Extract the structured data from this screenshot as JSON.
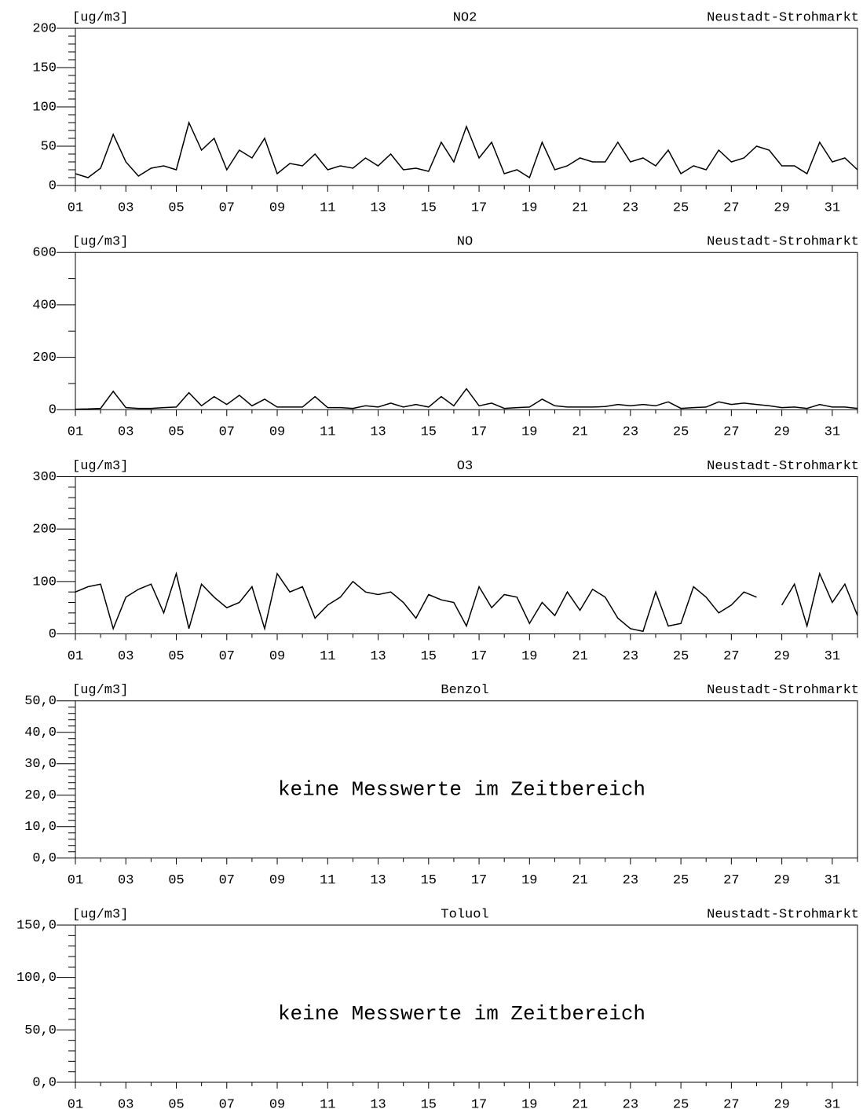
{
  "chart_data": [
    {
      "type": "line",
      "title": "NO2",
      "subtitle": "Neustadt-Strohmarkt",
      "ylabel": "[ug/m3]",
      "color": "#000000",
      "x": [
        1,
        1.5,
        2,
        2.5,
        3,
        3.5,
        4,
        4.5,
        5,
        5.5,
        6,
        6.5,
        7,
        7.5,
        8,
        8.5,
        9,
        9.5,
        10,
        10.5,
        11,
        11.5,
        12,
        12.5,
        13,
        13.5,
        14,
        14.5,
        15,
        15.5,
        16,
        16.5,
        17,
        17.5,
        18,
        18.5,
        19,
        19.5,
        20,
        20.5,
        21,
        21.5,
        22,
        22.5,
        23,
        23.5,
        24,
        24.5,
        25,
        25.5,
        26,
        26.5,
        27,
        27.5,
        28,
        28.5,
        29,
        29.5,
        30,
        30.5,
        31,
        31.5,
        32
      ],
      "values": [
        15,
        10,
        22,
        65,
        30,
        12,
        22,
        25,
        20,
        80,
        45,
        60,
        20,
        45,
        35,
        60,
        15,
        28,
        25,
        40,
        20,
        25,
        22,
        35,
        25,
        40,
        20,
        22,
        18,
        55,
        30,
        75,
        35,
        55,
        15,
        20,
        10,
        55,
        20,
        25,
        35,
        30,
        30,
        55,
        30,
        35,
        25,
        45,
        15,
        25,
        20,
        45,
        30,
        35,
        50,
        45,
        25,
        25,
        15,
        55,
        30,
        35,
        20
      ],
      "xlim": [
        1,
        32
      ],
      "xticks": [
        {
          "value": 1,
          "label": "01"
        },
        {
          "value": 3,
          "label": "03"
        },
        {
          "value": 5,
          "label": "05"
        },
        {
          "value": 7,
          "label": "07"
        },
        {
          "value": 9,
          "label": "09"
        },
        {
          "value": 11,
          "label": "11"
        },
        {
          "value": 13,
          "label": "13"
        },
        {
          "value": 15,
          "label": "15"
        },
        {
          "value": 17,
          "label": "17"
        },
        {
          "value": 19,
          "label": "19"
        },
        {
          "value": 21,
          "label": "21"
        },
        {
          "value": 23,
          "label": "23"
        },
        {
          "value": 25,
          "label": "25"
        },
        {
          "value": 27,
          "label": "27"
        },
        {
          "value": 29,
          "label": "29"
        },
        {
          "value": 31,
          "label": "31"
        }
      ],
      "xminorticks": [
        2,
        4,
        6,
        8,
        10,
        12,
        14,
        16,
        18,
        20,
        22,
        24,
        26,
        28,
        30,
        32
      ],
      "ylim": [
        0,
        200
      ],
      "yticks": [
        0,
        50,
        100,
        150,
        200
      ],
      "yminorticks": [
        10,
        20,
        30,
        40,
        60,
        70,
        80,
        90,
        110,
        120,
        130,
        140,
        160,
        170,
        180,
        190
      ]
    },
    {
      "type": "line",
      "title": "NO",
      "subtitle": "Neustadt-Strohmarkt",
      "ylabel": "[ug/m3]",
      "color": "#000000",
      "x": [
        1,
        1.5,
        2,
        2.5,
        3,
        3.5,
        4,
        4.5,
        5,
        5.5,
        6,
        6.5,
        7,
        7.5,
        8,
        8.5,
        9,
        9.5,
        10,
        10.5,
        11,
        11.5,
        12,
        12.5,
        13,
        13.5,
        14,
        14.5,
        15,
        15.5,
        16,
        16.5,
        17,
        17.5,
        18,
        18.5,
        19,
        19.5,
        20,
        20.5,
        21,
        21.5,
        22,
        22.5,
        23,
        23.5,
        24,
        24.5,
        25,
        25.5,
        26,
        26.5,
        27,
        27.5,
        28,
        28.5,
        29,
        29.5,
        30,
        30.5,
        31,
        31.5,
        32
      ],
      "values": [
        2,
        3,
        5,
        70,
        8,
        5,
        5,
        8,
        10,
        65,
        15,
        50,
        20,
        55,
        15,
        40,
        10,
        10,
        10,
        50,
        8,
        8,
        5,
        15,
        10,
        25,
        10,
        20,
        10,
        50,
        15,
        80,
        15,
        25,
        5,
        8,
        10,
        40,
        15,
        10,
        10,
        10,
        12,
        20,
        15,
        20,
        15,
        30,
        5,
        8,
        10,
        30,
        20,
        25,
        20,
        15,
        8,
        10,
        5,
        20,
        10,
        10,
        5
      ],
      "xlim": [
        1,
        32
      ],
      "xticks": [
        {
          "value": 1,
          "label": "01"
        },
        {
          "value": 3,
          "label": "03"
        },
        {
          "value": 5,
          "label": "05"
        },
        {
          "value": 7,
          "label": "07"
        },
        {
          "value": 9,
          "label": "09"
        },
        {
          "value": 11,
          "label": "11"
        },
        {
          "value": 13,
          "label": "13"
        },
        {
          "value": 15,
          "label": "15"
        },
        {
          "value": 17,
          "label": "17"
        },
        {
          "value": 19,
          "label": "19"
        },
        {
          "value": 21,
          "label": "21"
        },
        {
          "value": 23,
          "label": "23"
        },
        {
          "value": 25,
          "label": "25"
        },
        {
          "value": 27,
          "label": "27"
        },
        {
          "value": 29,
          "label": "29"
        },
        {
          "value": 31,
          "label": "31"
        }
      ],
      "xminorticks": [
        2,
        4,
        6,
        8,
        10,
        12,
        14,
        16,
        18,
        20,
        22,
        24,
        26,
        28,
        30,
        32
      ],
      "ylim": [
        0,
        600
      ],
      "yticks": [
        0,
        200,
        400,
        600
      ],
      "yminorticks": [
        100,
        300,
        500
      ]
    },
    {
      "type": "line",
      "title": "O3",
      "subtitle": "Neustadt-Strohmarkt",
      "ylabel": "[ug/m3]",
      "color": "#000000",
      "x": [
        1,
        1.5,
        2,
        2.5,
        3,
        3.5,
        4,
        4.5,
        5,
        5.5,
        6,
        6.5,
        7,
        7.5,
        8,
        8.5,
        9,
        9.5,
        10,
        10.5,
        11,
        11.5,
        12,
        12.5,
        13,
        13.5,
        14,
        14.5,
        15,
        15.5,
        16,
        16.5,
        17,
        17.5,
        18,
        18.5,
        19,
        19.5,
        20,
        20.5,
        21,
        21.5,
        22,
        22.5,
        23,
        23.5,
        24,
        24.5,
        25,
        25.5,
        26,
        26.5,
        27,
        27.5,
        28,
        28.5,
        29,
        29.5,
        30,
        30.5,
        31,
        31.5,
        32
      ],
      "values": [
        80,
        90,
        95,
        10,
        70,
        85,
        95,
        40,
        115,
        10,
        95,
        70,
        50,
        60,
        90,
        10,
        115,
        80,
        90,
        30,
        55,
        70,
        100,
        80,
        75,
        80,
        60,
        30,
        75,
        65,
        60,
        15,
        90,
        50,
        75,
        70,
        20,
        60,
        35,
        80,
        45,
        85,
        70,
        30,
        10,
        5,
        80,
        15,
        20,
        90,
        70,
        40,
        55,
        80,
        70,
        null,
        55,
        95,
        15,
        115,
        60,
        95,
        35
      ],
      "xlim": [
        1,
        32
      ],
      "xticks": [
        {
          "value": 1,
          "label": "01"
        },
        {
          "value": 3,
          "label": "03"
        },
        {
          "value": 5,
          "label": "05"
        },
        {
          "value": 7,
          "label": "07"
        },
        {
          "value": 9,
          "label": "09"
        },
        {
          "value": 11,
          "label": "11"
        },
        {
          "value": 13,
          "label": "13"
        },
        {
          "value": 15,
          "label": "15"
        },
        {
          "value": 17,
          "label": "17"
        },
        {
          "value": 19,
          "label": "19"
        },
        {
          "value": 21,
          "label": "21"
        },
        {
          "value": 23,
          "label": "23"
        },
        {
          "value": 25,
          "label": "25"
        },
        {
          "value": 27,
          "label": "27"
        },
        {
          "value": 29,
          "label": "29"
        },
        {
          "value": 31,
          "label": "31"
        }
      ],
      "xminorticks": [
        2,
        4,
        6,
        8,
        10,
        12,
        14,
        16,
        18,
        20,
        22,
        24,
        26,
        28,
        30,
        32
      ],
      "ylim": [
        0,
        300
      ],
      "yticks": [
        0,
        100,
        200,
        300
      ],
      "yminorticks": [
        20,
        40,
        60,
        80,
        120,
        140,
        160,
        180,
        220,
        240,
        260,
        280
      ]
    },
    {
      "type": "empty",
      "title": "Benzol",
      "subtitle": "Neustadt-Strohmarkt",
      "ylabel": "[ug/m3]",
      "annotation": "keine Messwerte im Zeitbereich",
      "xlim": [
        1,
        32
      ],
      "xticks": [
        {
          "value": 1,
          "label": "01"
        },
        {
          "value": 3,
          "label": "03"
        },
        {
          "value": 5,
          "label": "05"
        },
        {
          "value": 7,
          "label": "07"
        },
        {
          "value": 9,
          "label": "09"
        },
        {
          "value": 11,
          "label": "11"
        },
        {
          "value": 13,
          "label": "13"
        },
        {
          "value": 15,
          "label": "15"
        },
        {
          "value": 17,
          "label": "17"
        },
        {
          "value": 19,
          "label": "19"
        },
        {
          "value": 21,
          "label": "21"
        },
        {
          "value": 23,
          "label": "23"
        },
        {
          "value": 25,
          "label": "25"
        },
        {
          "value": 27,
          "label": "27"
        },
        {
          "value": 29,
          "label": "29"
        },
        {
          "value": 31,
          "label": "31"
        }
      ],
      "xminorticks": [
        2,
        4,
        6,
        8,
        10,
        12,
        14,
        16,
        18,
        20,
        22,
        24,
        26,
        28,
        30,
        32
      ],
      "ylim": [
        0,
        50
      ],
      "yticks": [
        {
          "value": 0,
          "label": "0,0"
        },
        {
          "value": 10,
          "label": "10,0"
        },
        {
          "value": 20,
          "label": "20,0"
        },
        {
          "value": 30,
          "label": "30,0"
        },
        {
          "value": 40,
          "label": "40,0"
        },
        {
          "value": 50,
          "label": "50,0"
        }
      ],
      "yminorticks": [
        2,
        4,
        6,
        8,
        12,
        14,
        16,
        18,
        22,
        24,
        26,
        28,
        32,
        34,
        36,
        38,
        42,
        44,
        46,
        48
      ]
    },
    {
      "type": "empty",
      "title": "Toluol",
      "subtitle": "Neustadt-Strohmarkt",
      "ylabel": "[ug/m3]",
      "annotation": "keine Messwerte im Zeitbereich",
      "xlim": [
        1,
        32
      ],
      "xticks": [
        {
          "value": 1,
          "label": "01"
        },
        {
          "value": 3,
          "label": "03"
        },
        {
          "value": 5,
          "label": "05"
        },
        {
          "value": 7,
          "label": "07"
        },
        {
          "value": 9,
          "label": "09"
        },
        {
          "value": 11,
          "label": "11"
        },
        {
          "value": 13,
          "label": "13"
        },
        {
          "value": 15,
          "label": "15"
        },
        {
          "value": 17,
          "label": "17"
        },
        {
          "value": 19,
          "label": "19"
        },
        {
          "value": 21,
          "label": "21"
        },
        {
          "value": 23,
          "label": "23"
        },
        {
          "value": 25,
          "label": "25"
        },
        {
          "value": 27,
          "label": "27"
        },
        {
          "value": 29,
          "label": "29"
        },
        {
          "value": 31,
          "label": "31"
        }
      ],
      "xminorticks": [
        2,
        4,
        6,
        8,
        10,
        12,
        14,
        16,
        18,
        20,
        22,
        24,
        26,
        28,
        30,
        32
      ],
      "ylim": [
        0,
        150
      ],
      "yticks": [
        {
          "value": 0,
          "label": "0,0"
        },
        {
          "value": 50,
          "label": "50,0"
        },
        {
          "value": 100,
          "label": "100,0"
        },
        {
          "value": 150,
          "label": "150,0"
        }
      ],
      "yminorticks": [
        10,
        20,
        30,
        40,
        60,
        70,
        80,
        90,
        110,
        120,
        130,
        140
      ]
    }
  ]
}
